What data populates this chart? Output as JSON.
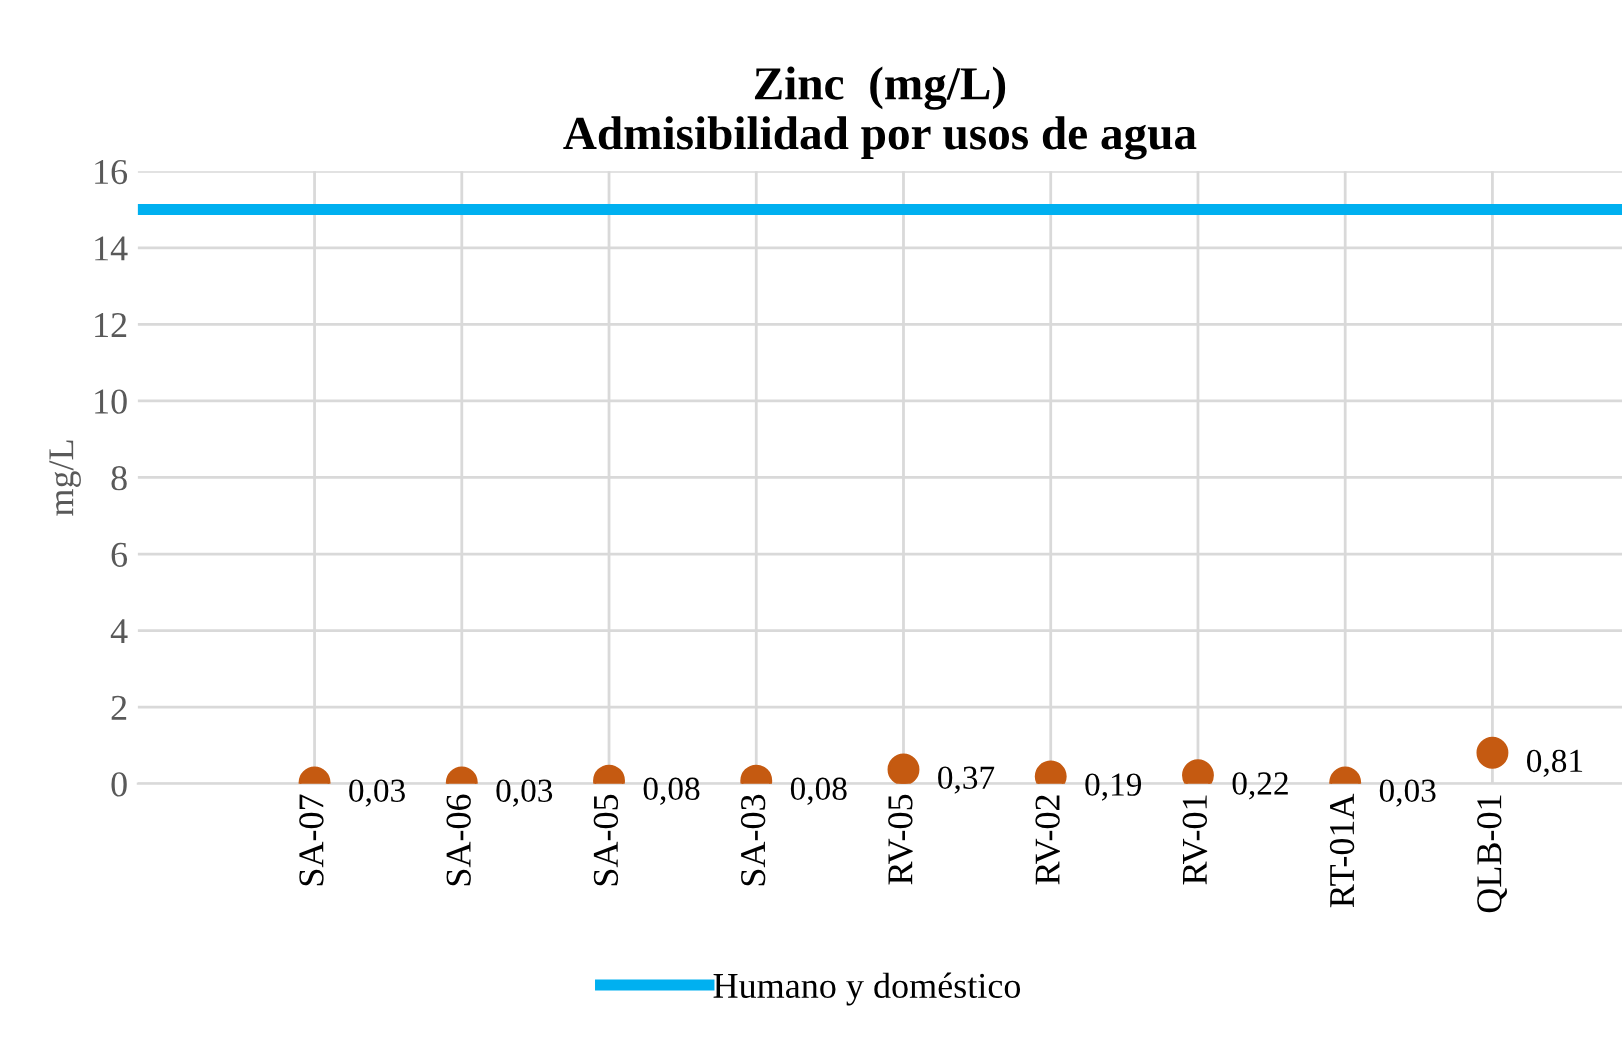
{
  "chart_data": {
    "type": "scatter",
    "title": "Zinc  (mg/L)\nAdmisibilidad por usos de agua",
    "ylabel": "mg/L",
    "categories": [
      "SA-07",
      "SA-06",
      "SA-05",
      "SA-03",
      "RV-05",
      "RV-02",
      "RV-01",
      "RT-01A",
      "QLB-01"
    ],
    "values": [
      0.03,
      0.03,
      0.08,
      0.08,
      0.37,
      0.19,
      0.22,
      0.03,
      0.81
    ],
    "value_labels": [
      "0,03",
      "0,03",
      "0,08",
      "0,08",
      "0,37",
      "0,19",
      "0,22",
      "0,03",
      "0,81"
    ],
    "color": "#c55a11",
    "marker": "circle",
    "ref_lines": [
      {
        "axis": "y",
        "value": 15,
        "label": "Humano y doméstico",
        "color": "#00b0f0",
        "line_style": "solid"
      }
    ],
    "ylim": [
      0,
      16
    ],
    "yticks": [
      0,
      2,
      4,
      6,
      8,
      10,
      12,
      14,
      16
    ],
    "grid": true,
    "legend": "bottom"
  }
}
